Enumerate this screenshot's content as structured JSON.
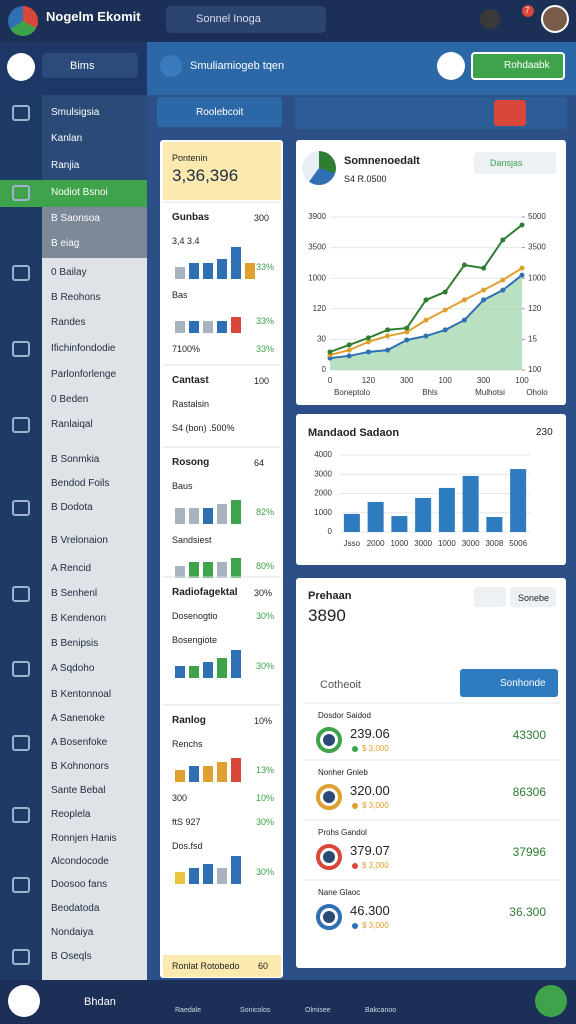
{
  "header": {
    "title": "Nogelm Ekomit",
    "search": "Sonnel Inoga",
    "badge": "7"
  },
  "sidebar_top": {
    "search": "Bims"
  },
  "toolbar": {
    "title": "Smuliamiogeb tqen",
    "button": "Rohdaabk"
  },
  "menu": [
    "Smulsigsia",
    "Kanlan",
    "Ranjia",
    "Nodiot Bsnoi",
    "B Saonsoa",
    "B eiag",
    "0 Bailay",
    "B Reohons",
    "Randes",
    "Ifichinfondodie",
    "Parlonforlenge",
    "0 Beden",
    "Ranlaiqal",
    "B Sonmkia",
    "Bendod Foils",
    "B Dodota",
    "B Vrelonaion",
    "A Rencid",
    "B Senhenl",
    "B Kendenon",
    "B Benipsis",
    "A Sqdoho",
    "B Kentonnoal",
    "A Sanenoke",
    "A Bosenfoke",
    "B Kohnonors",
    "Sante Bebal",
    "Reoplela",
    "Ronnjen Hanis",
    "Alcondocode",
    "Doosoo fans",
    "Beodatoda",
    "Nondaiya",
    "B Oseqls"
  ],
  "middle": {
    "button": "Roolebcoit",
    "total_label": "Pontenin",
    "total": "3,36,396",
    "sections": [
      {
        "title": "Gunbas",
        "value": "300",
        "rows": [
          {
            "label": "3,4 3.4",
            "pct": "33%",
            "bars": [
              3,
              4,
              4,
              5,
              8,
              4
            ],
            "colors": [
              "#a9b3bf",
              "#2f6fb3",
              "#2f6fb3",
              "#2f6fb3",
              "#2f6fb3",
              "#e0a030"
            ]
          },
          {
            "label": "Bas",
            "pct": "33%",
            "bars": [
              3,
              3,
              3,
              3,
              4
            ],
            "colors": [
              "#a9b3bf",
              "#2f6fb3",
              "#a9b3bf",
              "#2f6fb3",
              "#d9473a"
            ]
          },
          {
            "label": "7100%",
            "pct": "33%"
          }
        ]
      },
      {
        "title": "Cantast",
        "value": "100",
        "rows": [
          {
            "label": "Rastalsin"
          },
          {
            "label": "S4 (bon) .500%"
          }
        ]
      },
      {
        "title": "Rosong",
        "value": "64",
        "rows": [
          {
            "label": "Baus",
            "pct": "82%",
            "bars": [
              4,
              4,
              4,
              5,
              6
            ],
            "colors": [
              "#a9b3bf",
              "#a9b3bf",
              "#2f6fb3",
              "#a9b3bf",
              "#3ea34a"
            ]
          },
          {
            "label": "Sandsiest",
            "pct": "80%",
            "bars": [
              3,
              4,
              4,
              4,
              5
            ],
            "colors": [
              "#a9b3bf",
              "#3ea34a",
              "#3ea34a",
              "#a9b3bf",
              "#3ea34a"
            ]
          }
        ]
      },
      {
        "title": "Radiofagektal",
        "value": "30%",
        "rows": [
          {
            "label": "Dosenogtio",
            "pct": "30%"
          },
          {
            "label": "Bosengiote",
            "pct": "30%",
            "bars": [
              3,
              3,
              4,
              5,
              7
            ],
            "colors": [
              "#2f6fb3",
              "#3ea34a",
              "#2f6fb3",
              "#3ea34a",
              "#2f6fb3"
            ]
          }
        ]
      },
      {
        "title": "Ranlog",
        "value": "10%",
        "rows": [
          {
            "label": "Renchs",
            "pct": "13%",
            "bars": [
              3,
              4,
              4,
              5,
              6
            ],
            "colors": [
              "#e0a030",
              "#2f6fb3",
              "#e0a030",
              "#e0a030",
              "#d9473a"
            ]
          },
          {
            "label": "300",
            "pct": "10%"
          },
          {
            "label": "ftS 927",
            "pct": "30%"
          },
          {
            "label": "Dos.fsd",
            "pct": "30%",
            "bars": [
              3,
              4,
              5,
              4,
              7
            ],
            "colors": [
              "#e8c440",
              "#2f6fb3",
              "#2f6fb3",
              "#a9b3bf",
              "#2f6fb3"
            ]
          }
        ]
      }
    ],
    "footer": {
      "label": "Ronlat Rotobedo",
      "value": "60"
    }
  },
  "line_chart": {
    "title": "Somnenoedalt",
    "subtitle": "S4 R.0500",
    "button": "Dansjas",
    "categories": [
      "0",
      null,
      "120",
      null,
      "300",
      null,
      "100",
      null,
      "300",
      null,
      "100"
    ],
    "ylim": [
      0,
      5
    ],
    "yticks": [
      {
        "value": 0,
        "label": "0"
      },
      {
        "value": 1,
        "label": "30"
      },
      {
        "value": 2,
        "label": "120"
      },
      {
        "value": 3,
        "label": "1000"
      },
      {
        "value": 4,
        "label": "3500"
      },
      {
        "value": 5,
        "label": "3900"
      }
    ],
    "y2lim": [
      0,
      5
    ],
    "y2ticks": [
      {
        "value": 0,
        "label": "100"
      },
      {
        "value": 1,
        "label": "15"
      },
      {
        "value": 2,
        "label": "120"
      },
      {
        "value": 3,
        "label": "1000"
      },
      {
        "value": 4,
        "label": "3500"
      },
      {
        "value": 5,
        "label": "5000"
      }
    ],
    "x_notes": [
      "Boneptolo",
      "Bhls",
      "Mulhotsi",
      "Oholo"
    ],
    "series": [
      {
        "color": "#2f6fb3",
        "area": true,
        "values": [
          0.39,
          0.46,
          0.59,
          0.65,
          0.98,
          1.11,
          1.31,
          1.63,
          2.29,
          2.61,
          3.1
        ]
      },
      {
        "color": "#e0a030",
        "values": [
          0.49,
          0.65,
          0.92,
          1.11,
          1.24,
          1.63,
          1.96,
          2.29,
          2.61,
          2.94,
          3.33
        ]
      },
      {
        "color": "#2e7d32",
        "values": [
          0.59,
          0.82,
          1.05,
          1.31,
          1.37,
          2.29,
          2.55,
          3.43,
          3.33,
          4.25,
          4.74
        ]
      }
    ]
  },
  "bar_chart": {
    "title": "Mandaod Sadaon",
    "value": "230",
    "color": "#2f7bbf",
    "categories": [
      "Jsso",
      "2000",
      "1000",
      "3000",
      "1000",
      "3000",
      "3008",
      "5006"
    ],
    "values": [
      940,
      1560,
      830,
      1770,
      2290,
      2910,
      780,
      3270
    ],
    "ylim": [
      0,
      4000
    ],
    "yticks": [
      0,
      1000,
      2000,
      3000,
      4000
    ],
    "grid": true
  },
  "list": {
    "title": "Prehaan",
    "total": "3890",
    "button_small": "Sonebe",
    "filter": "Cotheoit",
    "button": "Sonhonde",
    "items": [
      {
        "label": "Dosdor Saidod",
        "value": "239.06",
        "sub": "$ 3,000",
        "right": "43300",
        "ring": "#3ea34a"
      },
      {
        "label": "Nonher Gnleb",
        "value": "320.00",
        "sub": "$ 3,000",
        "right": "86306",
        "ring": "#e0a030"
      },
      {
        "label": "Prohs Gandol",
        "value": "379.07",
        "sub": "$ 3,000",
        "right": "37996",
        "ring": "#d9473a"
      },
      {
        "label": "Nane Glaoc",
        "value": "46.300",
        "sub": "$ 3,000",
        "right": "36.300",
        "ring": "#2f6fb3"
      }
    ]
  },
  "bottom_bar": {
    "label": "Bhdan",
    "nav": [
      "Raedale",
      "Sonicolos",
      "Olmisee",
      "Bakcanoo"
    ]
  }
}
